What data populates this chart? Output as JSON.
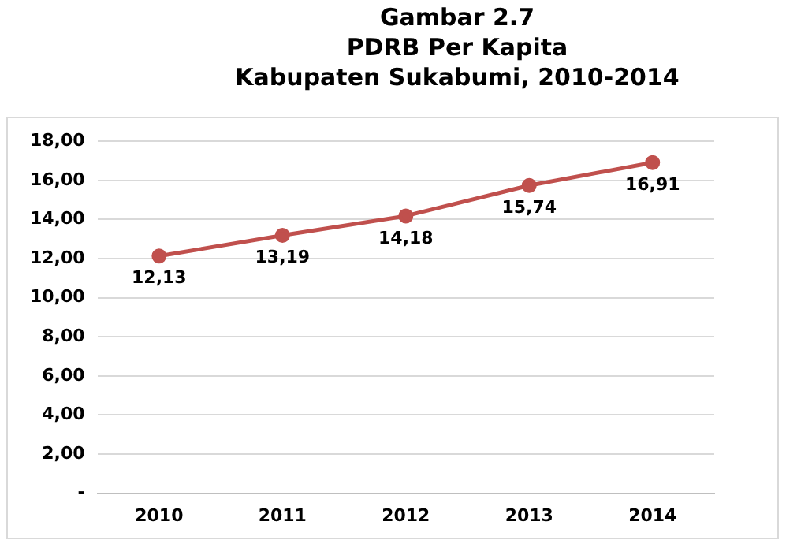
{
  "chart_data": {
    "type": "line",
    "title": "Gambar 2.7\nPDRB Per Kapita\nKabupaten Sukabumi, 2010-2014",
    "categories": [
      "2010",
      "2011",
      "2012",
      "2013",
      "2014"
    ],
    "series": [
      {
        "color": "#c0504d",
        "values": [
          12.13,
          13.19,
          14.18,
          15.74,
          16.91
        ],
        "value_labels": [
          "12,13",
          "13,19",
          "14,18",
          "15,74",
          "16,91"
        ]
      }
    ],
    "ylim": [
      0,
      18
    ],
    "yticks": [
      {
        "value": 0,
        "label": "-"
      },
      {
        "value": 2,
        "label": "2,00"
      },
      {
        "value": 4,
        "label": "4,00"
      },
      {
        "value": 6,
        "label": "6,00"
      },
      {
        "value": 8,
        "label": "8,00"
      },
      {
        "value": 10,
        "label": "10,00"
      },
      {
        "value": 12,
        "label": "12,00"
      },
      {
        "value": 14,
        "label": "14,00"
      },
      {
        "value": 16,
        "label": "16,00"
      },
      {
        "value": 18,
        "label": "18,00"
      }
    ],
    "grid": "y",
    "marker": "circle",
    "line_style": "solid",
    "legend": false
  }
}
